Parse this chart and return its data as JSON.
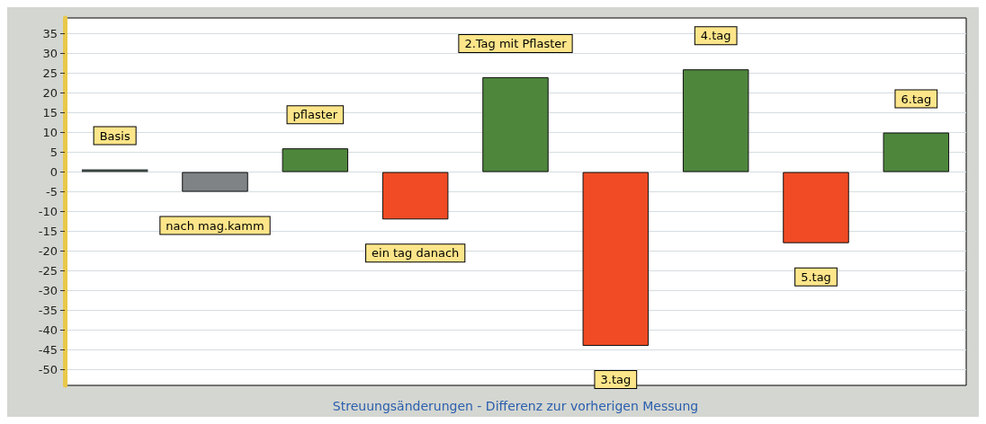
{
  "chart_data": {
    "type": "bar",
    "xlabel": "Streuungsänderungen - Differenz zur vorherigen Messung",
    "categories": [
      "Basis",
      "nach mag.kamm",
      "pflaster",
      "ein tag danach",
      "2.Tag mit Pflaster",
      "3.tag",
      "4.tag",
      "5.tag",
      "6.tag"
    ],
    "values": [
      0,
      -5,
      6,
      -12,
      24,
      -44,
      26,
      -18,
      10
    ],
    "colors": [
      "#3a4440",
      "#7f8386",
      "#4e863c",
      "#f04b24",
      "#4e863c",
      "#f04b24",
      "#4e863c",
      "#f04b24",
      "#4e863c"
    ],
    "ylim": [
      -54,
      39
    ],
    "yticks": [
      -50,
      -45,
      -40,
      -35,
      -30,
      -25,
      -20,
      -15,
      -10,
      -5,
      0,
      5,
      10,
      15,
      20,
      25,
      30,
      35
    ],
    "grid": "y",
    "tick_labels": "y"
  }
}
